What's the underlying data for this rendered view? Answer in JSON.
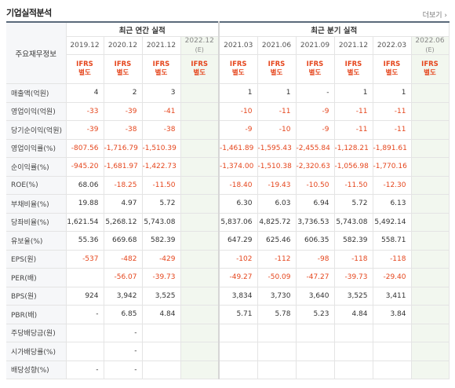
{
  "title": "기업실적분석",
  "more": "더보기",
  "header": {
    "label_col": "주요재무정보",
    "annual_group": "최근 연간 실적",
    "quarter_group": "최근 분기 실적",
    "annual_periods": [
      "2019.12",
      "2020.12",
      "2021.12",
      "2022.12"
    ],
    "annual_est_mark": "(E)",
    "quarter_periods": [
      "2021.03",
      "2021.06",
      "2021.09",
      "2021.12",
      "2022.03",
      "2022.06"
    ],
    "quarter_est_mark": "(E)",
    "ifrs_top": "IFRS",
    "ifrs_bottom": "별도"
  },
  "rows": [
    {
      "label": "매출액(억원)",
      "annual": [
        "4",
        "2",
        "3",
        ""
      ],
      "quarter": [
        "1",
        "1",
        "-",
        "1",
        "1",
        ""
      ]
    },
    {
      "label": "영업이익(억원)",
      "annual": [
        "-33",
        "-39",
        "-41",
        ""
      ],
      "quarter": [
        "-10",
        "-11",
        "-9",
        "-11",
        "-11",
        ""
      ]
    },
    {
      "label": "당기순이익(억원)",
      "annual": [
        "-39",
        "-38",
        "-38",
        ""
      ],
      "quarter": [
        "-9",
        "-10",
        "-9",
        "-11",
        "-11",
        ""
      ]
    },
    {
      "label": "영업이익률(%)",
      "annual": [
        "-807.56",
        "-1,716.79",
        "-1,510.39",
        ""
      ],
      "quarter": [
        "-1,461.89",
        "-1,595.43",
        "-2,455.84",
        "-1,128.21",
        "-1,891.61",
        ""
      ]
    },
    {
      "label": "순이익률(%)",
      "annual": [
        "-945.20",
        "-1,681.97",
        "-1,422.73",
        ""
      ],
      "quarter": [
        "-1,374.00",
        "-1,510.38",
        "-2,320.63",
        "-1,056.98",
        "-1,770.16",
        ""
      ]
    },
    {
      "label": "ROE(%)",
      "annual": [
        "68.06",
        "-18.25",
        "-11.50",
        ""
      ],
      "quarter": [
        "-18.40",
        "-19.43",
        "-10.50",
        "-11.50",
        "-12.30",
        ""
      ]
    },
    {
      "label": "부채비율(%)",
      "annual": [
        "19.88",
        "4.97",
        "5.72",
        ""
      ],
      "quarter": [
        "6.30",
        "6.03",
        "6.94",
        "5.72",
        "6.13",
        ""
      ]
    },
    {
      "label": "당좌비율(%)",
      "annual": [
        "1,621.54",
        "5,268.12",
        "5,743.08",
        ""
      ],
      "quarter": [
        "5,837.06",
        "4,825.72",
        "3,736.53",
        "5,743.08",
        "5,492.14",
        ""
      ]
    },
    {
      "label": "유보율(%)",
      "annual": [
        "55.36",
        "669.68",
        "582.39",
        ""
      ],
      "quarter": [
        "647.29",
        "625.46",
        "606.35",
        "582.39",
        "558.71",
        ""
      ]
    },
    {
      "label": "EPS(원)",
      "annual": [
        "-537",
        "-482",
        "-429",
        ""
      ],
      "quarter": [
        "-102",
        "-112",
        "-98",
        "-118",
        "-118",
        ""
      ]
    },
    {
      "label": "PER(배)",
      "annual": [
        "",
        "-56.07",
        "-39.73",
        ""
      ],
      "quarter": [
        "-49.27",
        "-50.09",
        "-47.27",
        "-39.73",
        "-29.40",
        ""
      ]
    },
    {
      "label": "BPS(원)",
      "annual": [
        "924",
        "3,942",
        "3,525",
        ""
      ],
      "quarter": [
        "3,834",
        "3,730",
        "3,640",
        "3,525",
        "3,411",
        ""
      ]
    },
    {
      "label": "PBR(배)",
      "annual": [
        "-",
        "6.85",
        "4.84",
        ""
      ],
      "quarter": [
        "5.71",
        "5.78",
        "5.23",
        "4.84",
        "3.84",
        ""
      ]
    },
    {
      "label": "주당배당금(원)",
      "annual": [
        "",
        "-",
        "",
        ""
      ],
      "quarter": [
        "",
        "",
        "",
        "",
        "",
        ""
      ]
    },
    {
      "label": "시가배당률(%)",
      "annual": [
        "",
        "-",
        "",
        ""
      ],
      "quarter": [
        "",
        "",
        "",
        "",
        "",
        ""
      ]
    },
    {
      "label": "배당성향(%)",
      "annual": [
        "-",
        "-",
        "",
        ""
      ],
      "quarter": [
        "",
        "",
        "",
        "",
        "",
        ""
      ]
    }
  ],
  "colors": {
    "negative": "#e5461d",
    "estimate_bg": "#f2f7ef",
    "label_bg": "#f6f7f9"
  }
}
